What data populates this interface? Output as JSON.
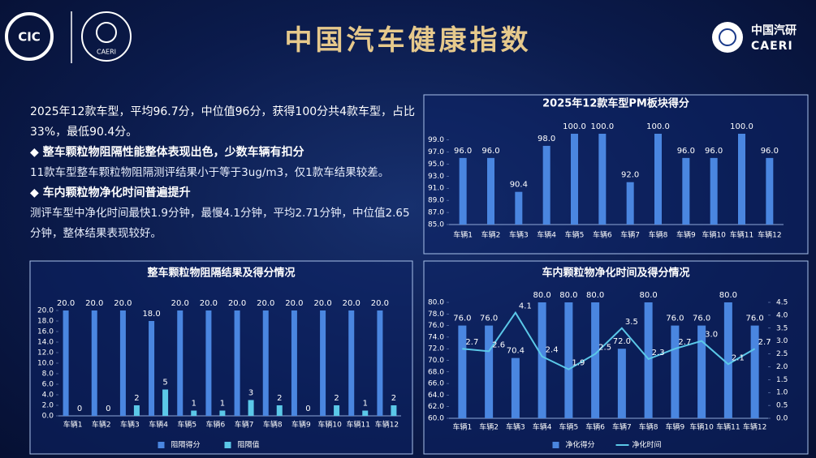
{
  "header": {
    "title": "中国汽车健康指数",
    "logo_left": "CIC",
    "logo_mid": "CAERI",
    "logo_right_cn": "中国汽研",
    "logo_right_en": "CAERI"
  },
  "text": {
    "summary": "2025年12款车型，平均96.7分，中位值96分，获得100分共4款车型，占比33%，最低90.4分。",
    "heading1": "◆ 整车颗粒物阻隔性能整体表现出色，少数车辆有扣分",
    "para1": "11款车型整车颗粒物阻隔测评结果小于等于3ug/m3，仅1款车结果较差。",
    "heading2": "◆ 车内颗粒物净化时间普遍提升",
    "para2": "测评车型中净化时间最快1.9分钟，最慢4.1分钟，平均2.71分钟，中位值2.65分钟，整体结果表现较好。"
  },
  "chart_data": [
    {
      "type": "bar",
      "title": "2025年12款车型PM板块得分",
      "categories": [
        "车辆1",
        "车辆2",
        "车辆3",
        "车辆4",
        "车辆5",
        "车辆6",
        "车辆7",
        "车辆8",
        "车辆9",
        "车辆10",
        "车辆11",
        "车辆12"
      ],
      "values": [
        96,
        96,
        90.4,
        98,
        100,
        100,
        92,
        100,
        96,
        96,
        100,
        96
      ],
      "value_labels": [
        "96.0",
        "96.0",
        "90.4",
        "98.0",
        "100.0",
        "100.0",
        "92.0",
        "100.0",
        "96.0",
        "96.0",
        "100.0",
        "96.0"
      ],
      "color": "#4a86e0",
      "ylim": [
        85,
        100
      ],
      "yticks": [
        {
          "value": 85,
          "label": "85.0"
        },
        {
          "value": 87,
          "label": "87.0"
        },
        {
          "value": 89,
          "label": "89.0"
        },
        {
          "value": 91,
          "label": "91.0"
        },
        {
          "value": 93,
          "label": "93.0"
        },
        {
          "value": 95,
          "label": "95.0"
        },
        {
          "value": 97,
          "label": "97.0"
        },
        {
          "value": 99,
          "label": "99.0"
        }
      ]
    },
    {
      "type": "bar",
      "title": "整车颗粒物阻隔结果及得分情况",
      "categories": [
        "车辆1",
        "车辆2",
        "车辆3",
        "车辆4",
        "车辆5",
        "车辆6",
        "车辆7",
        "车辆8",
        "车辆9",
        "车辆10",
        "车辆11",
        "车辆12"
      ],
      "series": [
        {
          "name": "阻隔得分",
          "color": "#4a86e0",
          "values": [
            20,
            20,
            20,
            18,
            20,
            20,
            20,
            20,
            20,
            20,
            20,
            20
          ],
          "value_labels": [
            "20.0",
            "20.0",
            "20.0",
            "18.0",
            "20.0",
            "20.0",
            "20.0",
            "20.0",
            "20.0",
            "20.0",
            "20.0",
            "20.0"
          ]
        },
        {
          "name": "阻隔值",
          "color": "#5bc8e8",
          "values": [
            0,
            0,
            2,
            5,
            1,
            1,
            3,
            2,
            0,
            2,
            1,
            2
          ]
        }
      ],
      "ylim": [
        0,
        20
      ],
      "yticks": [
        {
          "value": 0,
          "label": "0.0"
        },
        {
          "value": 2,
          "label": "2.0"
        },
        {
          "value": 4,
          "label": "4.0"
        },
        {
          "value": 6,
          "label": "6.0"
        },
        {
          "value": 8,
          "label": "8.0"
        },
        {
          "value": 10,
          "label": "10.0"
        },
        {
          "value": 12,
          "label": "12.0"
        },
        {
          "value": 14,
          "label": "14.0"
        },
        {
          "value": 16,
          "label": "16.0"
        },
        {
          "value": 18,
          "label": "18.0"
        },
        {
          "value": 20,
          "label": "20.0"
        }
      ]
    },
    {
      "type": "combo",
      "title": "车内颗粒物净化时间及得分情况",
      "categories": [
        "车辆1",
        "车辆2",
        "车辆3",
        "车辆4",
        "车辆5",
        "车辆6",
        "车辆7",
        "车辆8",
        "车辆9",
        "车辆10",
        "车辆11",
        "车辆12"
      ],
      "series": [
        {
          "name": "净化得分",
          "type": "bar",
          "color": "#4a86e0",
          "values": [
            76,
            76,
            70.4,
            80,
            80,
            80,
            72,
            80,
            76,
            76,
            80,
            76
          ],
          "value_labels": [
            "76.0",
            "76.0",
            "70.4",
            "80.0",
            "80.0",
            "80.0",
            "72.0",
            "80.0",
            "76.0",
            "76.0",
            "80.0",
            "76.0"
          ]
        },
        {
          "name": "净化时间",
          "type": "line",
          "axis": "y2",
          "color": "#5bc8e8",
          "values": [
            2.7,
            2.6,
            4.1,
            2.4,
            1.9,
            2.5,
            3.5,
            2.3,
            2.7,
            3.0,
            2.1,
            2.7
          ],
          "value_labels": [
            "2.7",
            "2.6",
            "4.1",
            "2.4",
            "1.9",
            "2.5",
            "3.5",
            "2.3",
            "2.7",
            "3.0",
            "2.1",
            "2.7"
          ]
        }
      ],
      "ylim": [
        60,
        80
      ],
      "yticks": [
        {
          "value": 60,
          "label": "60.0"
        },
        {
          "value": 62,
          "label": "62.0"
        },
        {
          "value": 64,
          "label": "64.0"
        },
        {
          "value": 66,
          "label": "66.0"
        },
        {
          "value": 68,
          "label": "68.0"
        },
        {
          "value": 70,
          "label": "70.0"
        },
        {
          "value": 72,
          "label": "72.0"
        },
        {
          "value": 74,
          "label": "74.0"
        },
        {
          "value": 76,
          "label": "76.0"
        },
        {
          "value": 78,
          "label": "78.0"
        },
        {
          "value": 80,
          "label": "80.0"
        }
      ],
      "y2lim": [
        0,
        4.5
      ],
      "y2ticks": [
        {
          "value": 0,
          "label": "0.0"
        },
        0.5,
        {
          "value": 1,
          "label": "1.0"
        },
        1.5,
        {
          "value": 2,
          "label": "2.0"
        },
        2.5,
        {
          "value": 3,
          "label": "3.0"
        },
        3.5,
        {
          "value": 4,
          "label": "4.0"
        },
        4.5
      ]
    }
  ]
}
